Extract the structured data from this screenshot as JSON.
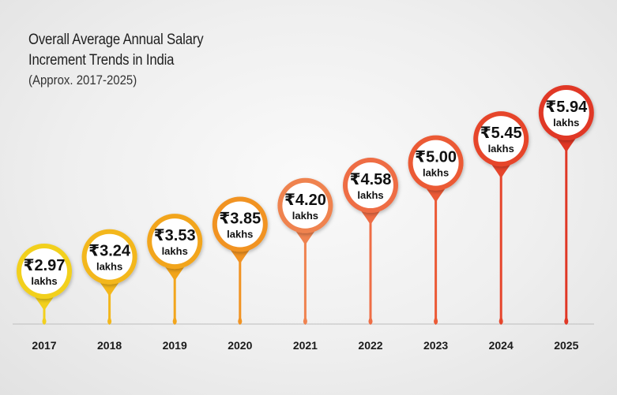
{
  "chart_data": {
    "type": "bar",
    "title_lines": [
      "Overall Average Annual Salary",
      "Increment Trends in India"
    ],
    "subtitle": "(Approx. 2017-2025)",
    "categories": [
      "2017",
      "2018",
      "2019",
      "2020",
      "2021",
      "2022",
      "2023",
      "2024",
      "2025"
    ],
    "values": [
      2.97,
      3.24,
      3.53,
      3.85,
      4.2,
      4.58,
      5.0,
      5.45,
      5.94
    ],
    "value_labels": [
      "₹2.97",
      "₹3.24",
      "₹3.53",
      "₹3.85",
      "₹4.20",
      "₹4.58",
      "₹5.00",
      "₹5.45",
      "₹5.94"
    ],
    "unit_label": "lakhs",
    "colors": [
      "#f2d01e",
      "#f3b71c",
      "#f2a51c",
      "#f19322",
      "#ef8350",
      "#ee6d45",
      "#eb5a36",
      "#e6452c",
      "#e03725"
    ],
    "ylim": [
      0,
      6.5
    ],
    "xlabel": "",
    "ylabel": ""
  }
}
